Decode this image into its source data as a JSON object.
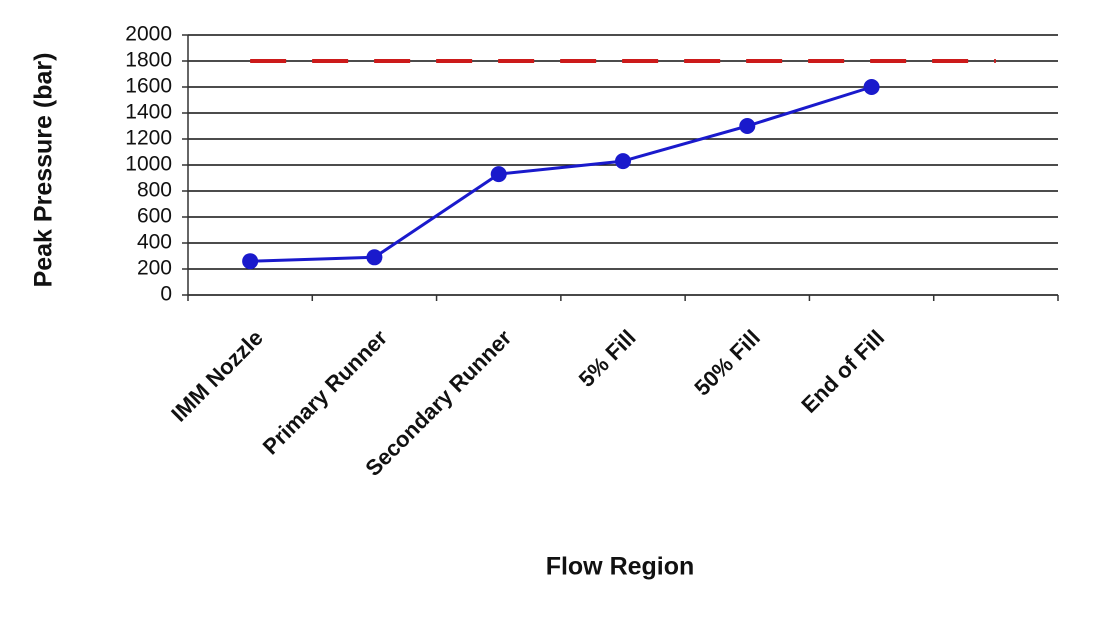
{
  "chart_data": {
    "type": "line",
    "x_label": "Flow Region",
    "y_label": "Peak Pressure (bar)",
    "categories": [
      "IMM Nozzle",
      "Primary Runner",
      "Secondary Runner",
      "5% Fill",
      "50% Fill",
      "End of Fill",
      null
    ],
    "series": [
      {
        "color": "#1a1acc",
        "style": "solid",
        "marker": true,
        "values": [
          260,
          290,
          930,
          1030,
          1300,
          1600,
          null
        ]
      },
      {
        "color": "#cc1a1a",
        "style": "dashed",
        "marker": false,
        "values": [
          1800,
          1800,
          1800,
          1800,
          1800,
          1800,
          1800
        ]
      }
    ],
    "ylim": [
      0,
      2000
    ],
    "yticks": [
      0,
      200,
      400,
      600,
      800,
      1000,
      1200,
      1400,
      1600,
      1800,
      2000
    ],
    "grid": true
  }
}
